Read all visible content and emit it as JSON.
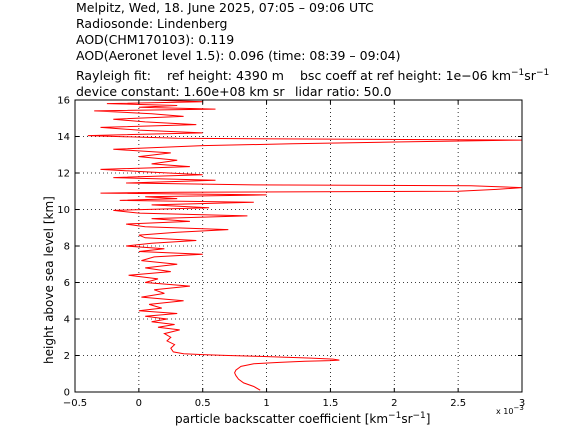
{
  "header": {
    "line1": "Melpitz, Wed, 18. June 2025, 07:05 – 09:06 UTC",
    "line2": "Radiosonde: Lindenberg",
    "line3": "AOD(CHM170103): 0.119",
    "line4": "AOD(Aeronet level 1.5): 0.096   (time: 08:39 – 09:04)",
    "rayleigh_fit": "Rayleigh fit:",
    "ref_height": "ref height: 4390 m",
    "bsc_coeff_prefix": "bsc coeff at ref height: 1e−06 km",
    "device_constant": "device constant: 1.60e+08 km sr",
    "lidar_ratio": "lidar ratio: 50.0"
  },
  "chart_data": {
    "type": "line",
    "xlabel": "particle backscatter coefficient [km⁻¹sr⁻¹]",
    "xlabel_main": "particle backscatter coefficient [km",
    "xlabel_sup1": "−1",
    "xlabel_mid": "sr",
    "xlabel_sup2": "−1",
    "xlabel_end": "]",
    "ylabel": "height above sea level [km]",
    "x_scale_note": "x 10⁻³",
    "x_scale_base": "x 10",
    "x_scale_exp": "−3",
    "xlim": [
      -0.5,
      3
    ],
    "ylim": [
      0,
      16
    ],
    "x_ticks": [
      -0.5,
      0,
      0.5,
      1,
      1.5,
      2,
      2.5,
      3
    ],
    "x_tick_labels": [
      "−0.5",
      "0",
      "0.5",
      "1",
      "1.5",
      "2",
      "2.5",
      "3"
    ],
    "y_ticks": [
      0,
      2,
      4,
      6,
      8,
      10,
      12,
      14,
      16
    ],
    "y_tick_labels": [
      "0",
      "2",
      "4",
      "6",
      "8",
      "10",
      "12",
      "14",
      "16"
    ],
    "grid": true,
    "series": [
      {
        "color": "#ff0000",
        "x": [
          0.95,
          0.9,
          0.82,
          0.78,
          0.76,
          0.75,
          0.76,
          0.8,
          0.9,
          1.1,
          1.3,
          1.5,
          1.57,
          1.52,
          1.35,
          1.15,
          0.95,
          0.7,
          0.5,
          0.35,
          0.27,
          0.25,
          0.28,
          0.22,
          0.25,
          0.2,
          0.32,
          0.15,
          0.28,
          0.1,
          0.22,
          0.05,
          0.3,
          0.0,
          0.18,
          0.08,
          0.35,
          0.02,
          0.2,
          0.12,
          0.4,
          0.05,
          0.15,
          -0.08,
          0.25,
          0.05,
          0.3,
          0.02,
          0.12,
          0.5,
          0.0,
          0.2,
          -0.1,
          0.1,
          0.45,
          0.05,
          0.0,
          0.3,
          0.7,
          0.05,
          -0.1,
          0.4,
          0.1,
          0.85,
          0.0,
          -0.2,
          0.55,
          0.1,
          0.9,
          -0.15,
          0.3,
          0.05,
          1.0,
          -0.3,
          0.3,
          2.5,
          2.8,
          3.0,
          2.6,
          0.9,
          -0.1,
          0.6,
          -0.2,
          0.5,
          0.1,
          -0.3,
          0.4,
          0.1,
          0.3,
          0.0,
          0.25,
          -0.2,
          0.5,
          1.2,
          2.0,
          3.0,
          0.3,
          -0.4,
          0.5,
          0.0,
          -0.3,
          0.45,
          0.05,
          -0.2,
          0.35,
          0.1,
          -0.35,
          0.6,
          0.0,
          0.3,
          -0.25,
          0.5,
          0.1,
          -0.3
        ],
        "y": [
          0.1,
          0.3,
          0.5,
          0.7,
          0.9,
          1.05,
          1.2,
          1.4,
          1.55,
          1.62,
          1.68,
          1.72,
          1.75,
          1.8,
          1.86,
          1.9,
          1.95,
          2.0,
          2.05,
          2.1,
          2.2,
          2.4,
          2.6,
          2.8,
          3.0,
          3.2,
          3.4,
          3.55,
          3.7,
          3.85,
          4.0,
          4.15,
          4.3,
          4.45,
          4.6,
          4.8,
          5.0,
          5.2,
          5.4,
          5.6,
          5.8,
          6.0,
          6.2,
          6.4,
          6.6,
          6.8,
          7.0,
          7.2,
          7.4,
          7.55,
          7.7,
          7.85,
          8.0,
          8.15,
          8.3,
          8.45,
          8.6,
          8.75,
          8.9,
          9.05,
          9.2,
          9.35,
          9.5,
          9.65,
          9.8,
          9.95,
          10.1,
          10.25,
          10.4,
          10.5,
          10.6,
          10.7,
          10.8,
          10.9,
          10.95,
          11.0,
          11.1,
          11.2,
          11.3,
          11.35,
          11.45,
          11.6,
          11.75,
          11.9,
          12.05,
          12.2,
          12.35,
          12.5,
          12.7,
          12.9,
          13.1,
          13.3,
          13.5,
          13.6,
          13.7,
          13.8,
          13.9,
          14.05,
          14.2,
          14.35,
          14.5,
          14.65,
          14.8,
          14.95,
          15.1,
          15.25,
          15.4,
          15.5,
          15.6,
          15.7,
          15.8,
          15.9,
          16.0,
          16.0
        ]
      }
    ]
  }
}
